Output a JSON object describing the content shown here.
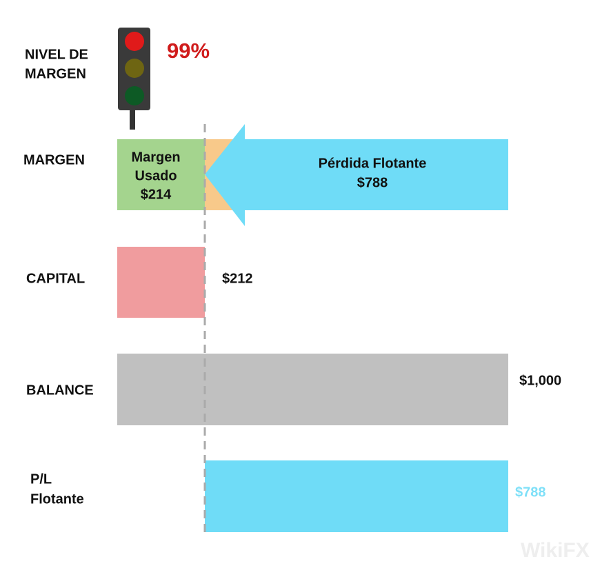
{
  "header": {
    "title_lines": [
      "NIVEL DE",
      "MARGEN"
    ],
    "level": "99%"
  },
  "rows": [
    {
      "label_lines": [
        "MARGEN"
      ],
      "used_lines": [
        "Margen",
        "Usado",
        "$214"
      ],
      "loss_lines": [
        "Pérdida Flotante",
        "$788"
      ]
    },
    {
      "label_lines": [
        "CAPITAL"
      ],
      "value": "$212"
    },
    {
      "label_lines": [
        "BALANCE"
      ],
      "value": "$1,000"
    },
    {
      "label_lines": [
        "P/L",
        "Flotante"
      ],
      "value": "$788"
    }
  ],
  "watermark": "WikiFX"
}
